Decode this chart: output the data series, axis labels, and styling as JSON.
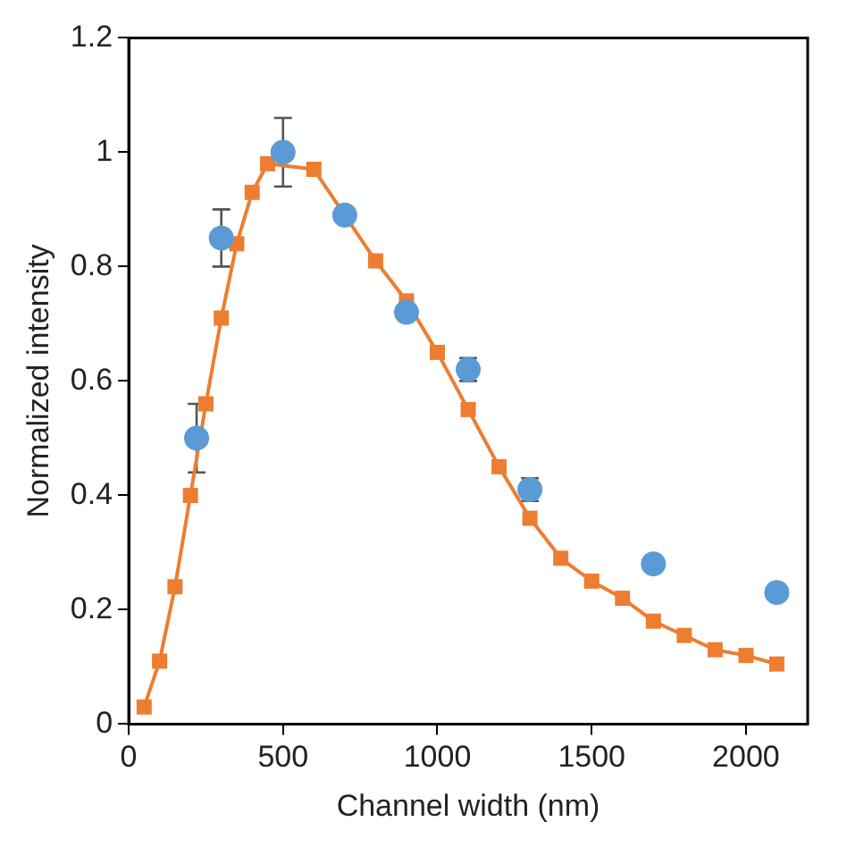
{
  "chart_data": {
    "type": "scatter",
    "xlabel": "Channel width (nm)",
    "ylabel": "Normalized intensity",
    "xlim": [
      0,
      2200
    ],
    "xticks": [
      0,
      500,
      1000,
      1500,
      2000
    ],
    "ylim": [
      0,
      1.2
    ],
    "yticks": [
      0,
      0.2,
      0.4,
      0.6,
      0.8,
      1,
      1.2
    ],
    "grid": false,
    "legend": false,
    "series": [
      {
        "type": "line",
        "marker": "square",
        "color": "#ed7d31",
        "x": [
          50,
          100,
          150,
          200,
          250,
          300,
          350,
          400,
          450,
          500,
          600,
          700,
          800,
          900,
          1000,
          1100,
          1200,
          1300,
          1400,
          1500,
          1600,
          1700,
          1800,
          1900,
          2000,
          2100
        ],
        "values": [
          0.03,
          0.11,
          0.24,
          0.4,
          0.56,
          0.71,
          0.84,
          0.93,
          0.98,
          null,
          0.97,
          null,
          0.81,
          0.74,
          0.65,
          0.55,
          0.45,
          0.36,
          0.29,
          0.25,
          0.22,
          0.18,
          0.155,
          0.13,
          0.12,
          0.105
        ]
      },
      {
        "marker": "circle",
        "color": "#5b9bd5",
        "x": [
          220,
          300,
          500,
          700,
          900,
          1100,
          1300,
          1700,
          2100
        ],
        "values": [
          0.5,
          0.85,
          1,
          0.89,
          0.72,
          0.62,
          0.41,
          0.28,
          0.23
        ],
        "errors": [
          0.06,
          0.05,
          0.06,
          null,
          null,
          0.02,
          0.02,
          null,
          null
        ]
      }
    ]
  }
}
